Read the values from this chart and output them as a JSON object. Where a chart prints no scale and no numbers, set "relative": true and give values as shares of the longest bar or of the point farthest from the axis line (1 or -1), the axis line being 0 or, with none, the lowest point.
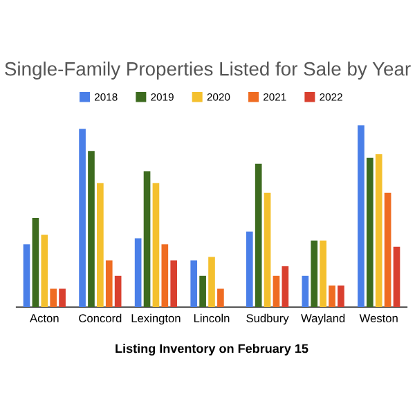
{
  "chart_data": {
    "type": "bar",
    "title": "Single-Family Properties Listed for Sale by Year",
    "xlabel": "Listing Inventory on February 15",
    "categories": [
      "Acton",
      "Concord",
      "Lexington",
      "Lincoln",
      "Sudbury",
      "Wayland",
      "Weston"
    ],
    "relative": true,
    "legend": "top",
    "series": [
      {
        "name": "2018",
        "color": "#4a7fe8",
        "values": [
          0.345,
          0.981,
          0.379,
          0.257,
          0.416,
          0.172,
          1.0
        ]
      },
      {
        "name": "2019",
        "color": "#3d6b1f",
        "values": [
          0.491,
          0.859,
          0.748,
          0.172,
          0.788,
          0.366,
          0.822
        ]
      },
      {
        "name": "2020",
        "color": "#f4c02e",
        "values": [
          0.398,
          0.682,
          0.682,
          0.276,
          0.629,
          0.366,
          0.841
        ]
      },
      {
        "name": "2021",
        "color": "#ef6c22",
        "values": [
          0.101,
          0.257,
          0.345,
          0.101,
          0.172,
          0.119,
          0.629
        ]
      },
      {
        "name": "2022",
        "color": "#d9402f",
        "values": [
          0.101,
          0.172,
          0.257,
          0,
          0.225,
          0.119,
          0.332
        ]
      }
    ]
  }
}
